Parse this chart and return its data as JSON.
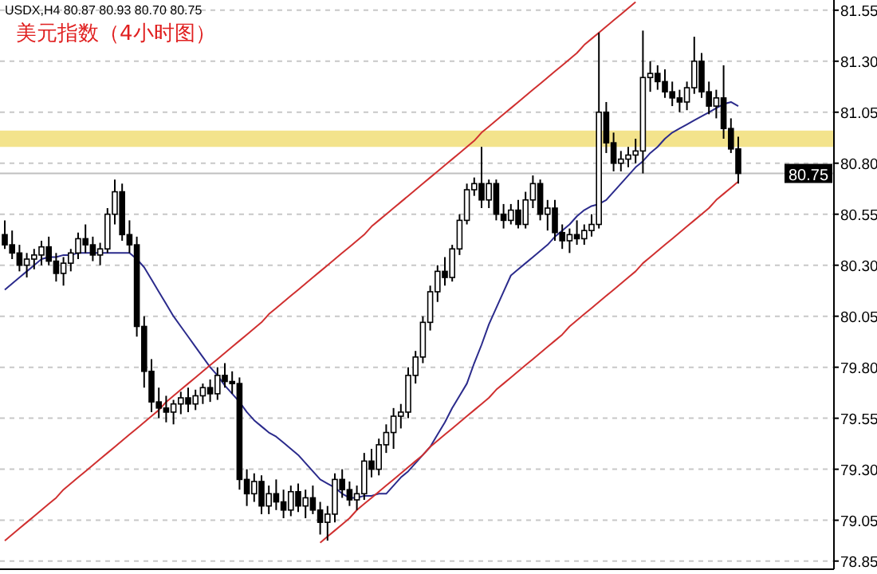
{
  "chart_data": {
    "type": "candlestick",
    "title": "美元指数（4小时图）",
    "annotations": [
      "USDX,H4 80.87 80.93 80.70 80.75"
    ],
    "categories": [
      null,
      null,
      null,
      null,
      null,
      null,
      null,
      null,
      null,
      null,
      null,
      null,
      null,
      null,
      null,
      null,
      null,
      null,
      null,
      null,
      null,
      null,
      null,
      null,
      null,
      null,
      null,
      null,
      null,
      null,
      null,
      null,
      null,
      null,
      null,
      null,
      null,
      null,
      null,
      null,
      null,
      null,
      null,
      null,
      null,
      null,
      null,
      null,
      null,
      null,
      null,
      null,
      null,
      null,
      null,
      null,
      null,
      null,
      null,
      null,
      null,
      null,
      null,
      null,
      null,
      null,
      null,
      null,
      null,
      null,
      null,
      null,
      null,
      null,
      null,
      null,
      null,
      null,
      null,
      null,
      null,
      null,
      null,
      null,
      null,
      null,
      null,
      null,
      null,
      null,
      null,
      null,
      null,
      null,
      null,
      null,
      null,
      null,
      null,
      null,
      null
    ],
    "ohlc": [
      [
        80.45,
        80.52,
        80.38,
        80.4
      ],
      [
        80.4,
        80.47,
        80.33,
        80.36
      ],
      [
        80.36,
        80.4,
        80.27,
        80.3
      ],
      [
        80.3,
        80.36,
        80.24,
        80.33
      ],
      [
        80.33,
        80.38,
        80.28,
        80.35
      ],
      [
        80.35,
        80.42,
        80.3,
        80.39
      ],
      [
        80.39,
        80.44,
        80.3,
        80.32
      ],
      [
        80.32,
        80.36,
        80.22,
        80.26
      ],
      [
        80.26,
        80.34,
        80.2,
        80.31
      ],
      [
        80.31,
        80.38,
        80.27,
        80.36
      ],
      [
        80.36,
        80.46,
        80.33,
        80.43
      ],
      [
        80.43,
        80.5,
        80.36,
        80.4
      ],
      [
        80.4,
        80.44,
        80.32,
        80.35
      ],
      [
        80.35,
        80.41,
        80.3,
        80.38
      ],
      [
        80.38,
        80.58,
        80.36,
        80.55
      ],
      [
        80.55,
        80.72,
        80.5,
        80.66
      ],
      [
        80.66,
        80.7,
        80.42,
        80.45
      ],
      [
        80.45,
        80.52,
        80.36,
        80.4
      ],
      [
        80.4,
        80.44,
        79.95,
        80.0
      ],
      [
        80.0,
        80.05,
        79.7,
        79.78
      ],
      [
        79.78,
        79.84,
        79.58,
        79.63
      ],
      [
        79.63,
        79.7,
        79.55,
        79.6
      ],
      [
        79.6,
        79.66,
        79.53,
        79.58
      ],
      [
        79.58,
        79.64,
        79.52,
        79.62
      ],
      [
        79.62,
        79.68,
        79.57,
        79.65
      ],
      [
        79.65,
        79.7,
        79.58,
        79.62
      ],
      [
        79.62,
        79.69,
        79.59,
        79.66
      ],
      [
        79.66,
        79.72,
        79.62,
        79.7
      ],
      [
        79.7,
        79.74,
        79.63,
        79.67
      ],
      [
        79.67,
        79.8,
        79.64,
        79.76
      ],
      [
        79.76,
        79.82,
        79.7,
        79.73
      ],
      [
        79.73,
        79.78,
        79.67,
        79.72
      ],
      [
        79.72,
        79.75,
        79.2,
        79.25
      ],
      [
        79.25,
        79.3,
        79.12,
        79.18
      ],
      [
        79.18,
        79.28,
        79.14,
        79.24
      ],
      [
        79.24,
        79.27,
        79.08,
        79.12
      ],
      [
        79.12,
        79.22,
        79.08,
        79.18
      ],
      [
        79.18,
        79.25,
        79.1,
        79.14
      ],
      [
        79.14,
        79.2,
        79.06,
        79.1
      ],
      [
        79.1,
        79.22,
        79.07,
        79.19
      ],
      [
        79.19,
        79.23,
        79.09,
        79.12
      ],
      [
        79.12,
        79.2,
        79.06,
        79.16
      ],
      [
        79.16,
        79.22,
        79.08,
        79.1
      ],
      [
        79.1,
        79.14,
        78.98,
        79.04
      ],
      [
        79.04,
        79.12,
        78.95,
        79.08
      ],
      [
        79.08,
        79.28,
        79.04,
        79.25
      ],
      [
        79.25,
        79.3,
        79.16,
        79.2
      ],
      [
        79.2,
        79.24,
        79.12,
        79.15
      ],
      [
        79.15,
        79.22,
        79.1,
        79.18
      ],
      [
        79.18,
        79.38,
        79.15,
        79.34
      ],
      [
        79.34,
        79.4,
        79.26,
        79.3
      ],
      [
        79.3,
        79.45,
        79.27,
        79.42
      ],
      [
        79.42,
        79.52,
        79.38,
        79.48
      ],
      [
        79.48,
        79.6,
        79.4,
        79.56
      ],
      [
        79.56,
        79.62,
        79.5,
        79.58
      ],
      [
        79.58,
        79.8,
        79.55,
        79.76
      ],
      [
        79.76,
        79.88,
        79.72,
        79.85
      ],
      [
        79.85,
        80.05,
        79.82,
        80.02
      ],
      [
        80.02,
        80.2,
        79.98,
        80.17
      ],
      [
        80.17,
        80.3,
        80.12,
        80.27
      ],
      [
        80.27,
        80.34,
        80.2,
        80.24
      ],
      [
        80.24,
        80.4,
        80.22,
        80.38
      ],
      [
        80.38,
        80.55,
        80.35,
        80.52
      ],
      [
        80.52,
        80.7,
        80.5,
        80.67
      ],
      [
        80.67,
        80.73,
        80.64,
        80.7
      ],
      [
        80.7,
        80.88,
        80.58,
        80.62
      ],
      [
        80.62,
        80.72,
        80.58,
        80.7
      ],
      [
        80.7,
        80.72,
        80.52,
        80.55
      ],
      [
        80.55,
        80.6,
        80.48,
        80.52
      ],
      [
        80.52,
        80.6,
        80.5,
        80.57
      ],
      [
        80.57,
        80.62,
        80.48,
        80.5
      ],
      [
        80.5,
        80.66,
        80.48,
        80.62
      ],
      [
        80.62,
        80.74,
        80.58,
        80.7
      ],
      [
        80.7,
        80.72,
        80.52,
        80.55
      ],
      [
        80.55,
        80.62,
        80.47,
        80.58
      ],
      [
        80.58,
        80.62,
        80.42,
        80.46
      ],
      [
        80.46,
        80.5,
        80.38,
        80.42
      ],
      [
        80.42,
        80.48,
        80.36,
        80.45
      ],
      [
        80.45,
        80.52,
        80.4,
        80.43
      ],
      [
        80.43,
        80.5,
        80.4,
        80.47
      ],
      [
        80.47,
        80.55,
        80.44,
        80.5
      ],
      [
        80.5,
        81.44,
        80.48,
        81.05
      ],
      [
        81.05,
        81.1,
        80.85,
        80.9
      ],
      [
        80.9,
        80.95,
        80.76,
        80.8
      ],
      [
        80.8,
        80.86,
        80.76,
        80.82
      ],
      [
        80.82,
        80.88,
        80.78,
        80.84
      ],
      [
        80.84,
        80.92,
        80.8,
        80.86
      ],
      [
        80.86,
        81.45,
        80.75,
        81.22
      ],
      [
        81.22,
        81.3,
        81.15,
        81.24
      ],
      [
        81.24,
        81.28,
        81.16,
        81.2
      ],
      [
        81.2,
        81.26,
        81.12,
        81.15
      ],
      [
        81.15,
        81.2,
        81.08,
        81.12
      ],
      [
        81.12,
        81.16,
        81.05,
        81.1
      ],
      [
        81.1,
        81.2,
        81.06,
        81.17
      ],
      [
        81.17,
        81.42,
        81.14,
        81.3
      ],
      [
        81.3,
        81.34,
        81.12,
        81.15
      ],
      [
        81.15,
        81.2,
        81.04,
        81.08
      ],
      [
        81.08,
        81.16,
        81.02,
        81.12
      ],
      [
        81.12,
        81.28,
        80.92,
        80.97
      ],
      [
        80.97,
        81.02,
        80.85,
        80.87
      ],
      [
        80.87,
        80.93,
        80.7,
        80.75
      ]
    ],
    "series": [
      {
        "type": "line",
        "color": "#2b2b8c",
        "values": [
          80.18,
          80.21,
          80.24,
          80.27,
          80.3,
          80.33,
          80.34,
          80.34,
          80.35,
          80.35,
          80.36,
          80.36,
          80.36,
          80.36,
          80.36,
          80.36,
          80.36,
          80.36,
          80.33,
          80.29,
          80.23,
          80.17,
          80.11,
          80.05,
          80.0,
          79.95,
          79.9,
          79.85,
          79.8,
          79.76,
          79.71,
          79.67,
          79.63,
          79.58,
          79.54,
          79.51,
          79.48,
          79.46,
          79.43,
          79.4,
          79.37,
          79.33,
          79.29,
          79.25,
          79.23,
          79.21,
          79.18,
          79.16,
          79.16,
          79.17,
          79.17,
          79.18,
          79.18,
          79.22,
          79.26,
          79.29,
          79.33,
          79.37,
          79.41,
          79.47,
          79.53,
          79.6,
          79.66,
          79.72,
          79.82,
          79.91,
          80.01,
          80.09,
          80.17,
          80.25,
          80.28,
          80.31,
          80.34,
          80.37,
          80.4,
          80.44,
          80.47,
          80.5,
          80.54,
          80.57,
          80.59,
          80.6,
          80.62,
          80.66,
          80.7,
          80.74,
          80.78,
          80.81,
          80.85,
          80.88,
          80.92,
          80.95,
          80.97,
          80.99,
          81.01,
          81.03,
          81.05,
          81.07,
          81.09,
          81.1,
          81.08
        ]
      },
      {
        "type": "line",
        "color": "#d03030",
        "values": [
          78.95,
          78.98,
          79.01,
          79.04,
          79.07,
          79.1,
          79.13,
          79.16,
          79.2,
          79.23,
          79.26,
          79.29,
          79.32,
          79.35,
          79.38,
          79.41,
          79.44,
          79.47,
          79.5,
          79.53,
          79.56,
          79.59,
          79.63,
          79.66,
          79.69,
          79.72,
          79.75,
          79.78,
          79.81,
          79.84,
          79.87,
          79.9,
          79.93,
          79.96,
          79.99,
          80.02,
          80.06,
          80.09,
          80.12,
          80.15,
          80.18,
          80.21,
          80.24,
          80.27,
          80.3,
          80.33,
          80.36,
          80.39,
          80.42,
          80.45,
          80.49,
          80.52,
          80.55,
          80.58,
          80.61,
          80.64,
          80.67,
          80.7,
          80.73,
          80.76,
          80.79,
          80.82,
          80.85,
          80.88,
          80.91,
          80.95,
          80.98,
          81.01,
          81.04,
          81.07,
          81.1,
          81.13,
          81.16,
          81.19,
          81.22,
          81.25,
          81.28,
          81.31,
          81.34,
          81.38,
          81.41,
          81.44,
          81.47,
          81.5,
          81.53,
          81.56,
          81.59,
          null,
          null,
          null,
          null,
          null,
          null,
          null,
          null,
          null,
          null,
          null,
          null,
          null,
          null
        ]
      },
      {
        "type": "line",
        "color": "#d03030",
        "values": [
          null,
          null,
          null,
          null,
          null,
          null,
          null,
          null,
          null,
          null,
          null,
          null,
          null,
          null,
          null,
          null,
          null,
          null,
          null,
          null,
          null,
          null,
          null,
          null,
          null,
          null,
          null,
          null,
          null,
          null,
          null,
          null,
          null,
          null,
          null,
          null,
          null,
          null,
          null,
          null,
          null,
          null,
          null,
          78.94,
          78.97,
          79.0,
          79.03,
          79.06,
          79.1,
          79.13,
          79.16,
          79.19,
          79.22,
          79.25,
          79.28,
          79.31,
          79.34,
          79.37,
          79.41,
          79.44,
          79.47,
          79.5,
          79.53,
          79.56,
          79.59,
          79.62,
          79.65,
          79.69,
          79.72,
          79.75,
          79.78,
          79.81,
          79.84,
          79.87,
          79.9,
          79.93,
          79.96,
          80.0,
          80.03,
          80.06,
          80.09,
          80.12,
          80.15,
          80.18,
          80.21,
          80.24,
          80.27,
          80.31,
          80.34,
          80.37,
          80.4,
          80.43,
          80.46,
          80.49,
          80.52,
          80.55,
          80.58,
          80.62,
          80.65,
          80.68,
          80.71
        ]
      }
    ],
    "bands": [
      {
        "axis": "y",
        "from": 80.88,
        "to": 80.96,
        "color": "#f3e38c"
      }
    ],
    "ref_lines": [
      {
        "axis": "y",
        "value": 80.75,
        "label": "80.75",
        "color": "#c0c0c0"
      }
    ],
    "ylim": [
      78.81,
      81.6
    ],
    "yticks": [
      {
        "value": 81.55,
        "label": "81.55"
      },
      {
        "value": 81.3,
        "label": "81.30"
      },
      {
        "value": 81.05,
        "label": "81.05"
      },
      {
        "value": 80.8,
        "label": "80.80"
      },
      {
        "value": 80.55,
        "label": "80.55"
      },
      {
        "value": 80.3,
        "label": "80.30"
      },
      {
        "value": 80.05,
        "label": "80.05"
      },
      {
        "value": 79.8,
        "label": "79.80"
      },
      {
        "value": 79.55,
        "label": "79.55"
      },
      {
        "value": 79.3,
        "label": "79.30"
      },
      {
        "value": 79.05,
        "label": "79.05"
      },
      {
        "value": 78.85,
        "label": "78.85"
      }
    ],
    "grid": "y",
    "tick_labels": "y",
    "line_style": "solid"
  }
}
